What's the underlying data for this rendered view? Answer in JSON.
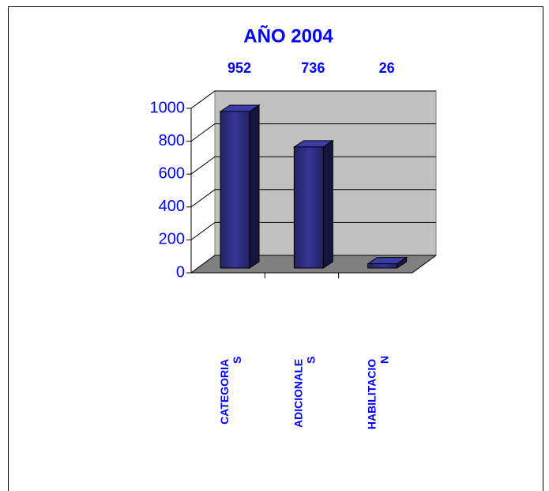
{
  "chart_data": {
    "type": "bar3d",
    "title": "AÑO 2004",
    "categories": [
      "CATEGORIAS",
      "ADICIONALES",
      "HABILITACION"
    ],
    "values": [
      952,
      736,
      26
    ],
    "color": "#2b2b80",
    "ylim": [
      0,
      1000
    ],
    "yticks": [
      0,
      200,
      400,
      600,
      800,
      1000
    ],
    "grid": true
  }
}
